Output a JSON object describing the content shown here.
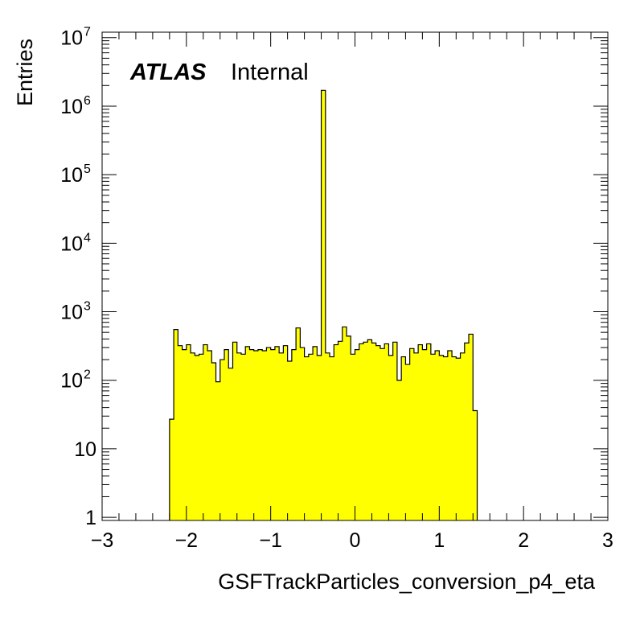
{
  "chart_data": {
    "type": "bar",
    "histogram": true,
    "xlabel": "GSFTrackParticles_conversion_p4_eta",
    "ylabel": "Entries",
    "xlim": [
      -3,
      3
    ],
    "ylim": [
      0.9,
      12000000
    ],
    "log_y": true,
    "fill_color": "#ffff00",
    "line_color": "#000000",
    "label_main": "ATLAS",
    "label_sub": "Internal",
    "x_ticks": [
      "−3",
      "−2",
      "−1",
      "0",
      "1",
      "2",
      "3"
    ],
    "y_ticks": [
      {
        "base": "1",
        "exp": ""
      },
      {
        "base": "10",
        "exp": ""
      },
      {
        "base": "10",
        "exp": "2"
      },
      {
        "base": "10",
        "exp": "3"
      },
      {
        "base": "10",
        "exp": "4"
      },
      {
        "base": "10",
        "exp": "5"
      },
      {
        "base": "10",
        "exp": "6"
      },
      {
        "base": "10",
        "exp": "7"
      }
    ],
    "bin_edges_start": -2.2,
    "bin_width": 0.05,
    "values": [
      27,
      550,
      320,
      280,
      330,
      250,
      230,
      240,
      330,
      270,
      180,
      95,
      200,
      280,
      150,
      360,
      250,
      240,
      310,
      280,
      270,
      280,
      270,
      300,
      280,
      310,
      250,
      320,
      190,
      280,
      580,
      300,
      220,
      240,
      310,
      230,
      1700000,
      250,
      220,
      330,
      370,
      600,
      440,
      240,
      280,
      340,
      360,
      390,
      350,
      320,
      290,
      340,
      230,
      360,
      100,
      220,
      170,
      290,
      250,
      330,
      280,
      340,
      240,
      270,
      230,
      220,
      270,
      220,
      210,
      250,
      350,
      470,
      36
    ]
  }
}
